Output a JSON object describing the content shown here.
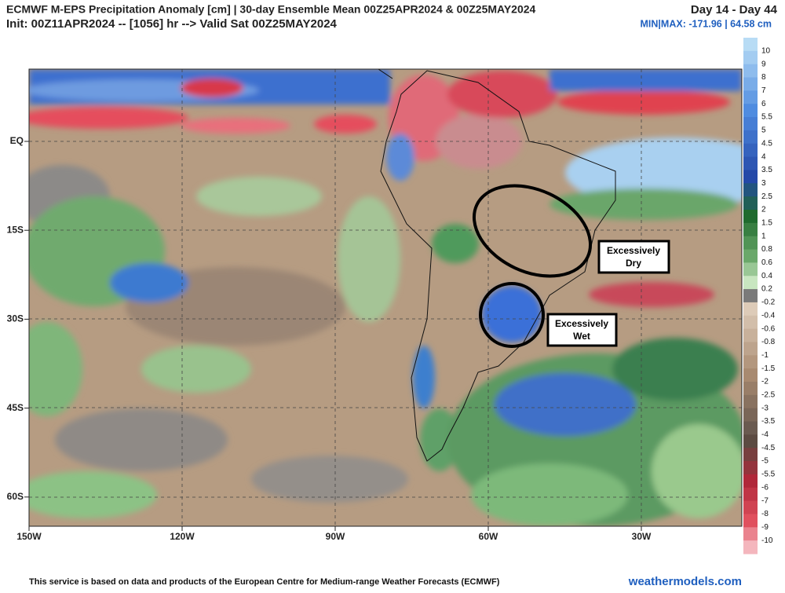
{
  "header": {
    "title": "ECMWF M-EPS Precipitation Anomaly [cm] | 30-day Ensemble Mean 00Z25APR2024 & 00Z25MAY2024",
    "subtitle": "Init: 00Z11APR2024 -- [1056] hr --> Valid Sat 00Z25MAY2024",
    "day_range": "Day 14 - Day 44",
    "min_max": "MIN|MAX: -171.96 | 64.58 cm"
  },
  "map": {
    "lat_labels": [
      "EQ",
      "15S",
      "30S",
      "45S",
      "60S"
    ],
    "lon_labels": [
      "150W",
      "120W",
      "90W",
      "60W",
      "30W"
    ],
    "annotations": [
      {
        "lines": [
          "Excessively",
          "Dry"
        ]
      },
      {
        "lines": [
          "Excessively",
          "Wet"
        ]
      }
    ]
  },
  "colorbar": {
    "labels": [
      "10",
      "9",
      "8",
      "7",
      "6",
      "5.5",
      "5",
      "4.5",
      "4",
      "3.5",
      "3",
      "2.5",
      "2",
      "1.5",
      "1",
      "0.8",
      "0.6",
      "0.4",
      "0.2",
      "-0.2",
      "-0.4",
      "-0.6",
      "-0.8",
      "-1",
      "-1.5",
      "-2",
      "-2.5",
      "-3",
      "-3.5",
      "-4",
      "-4.5",
      "-5",
      "-5.5",
      "-6",
      "-7",
      "-8",
      "-9",
      "-10"
    ]
  },
  "footer": {
    "disclaimer": "This service is based on data and products of the European Centre for Medium-range Weather Forecasts (ECMWF)",
    "site": "weathermodels.com"
  }
}
